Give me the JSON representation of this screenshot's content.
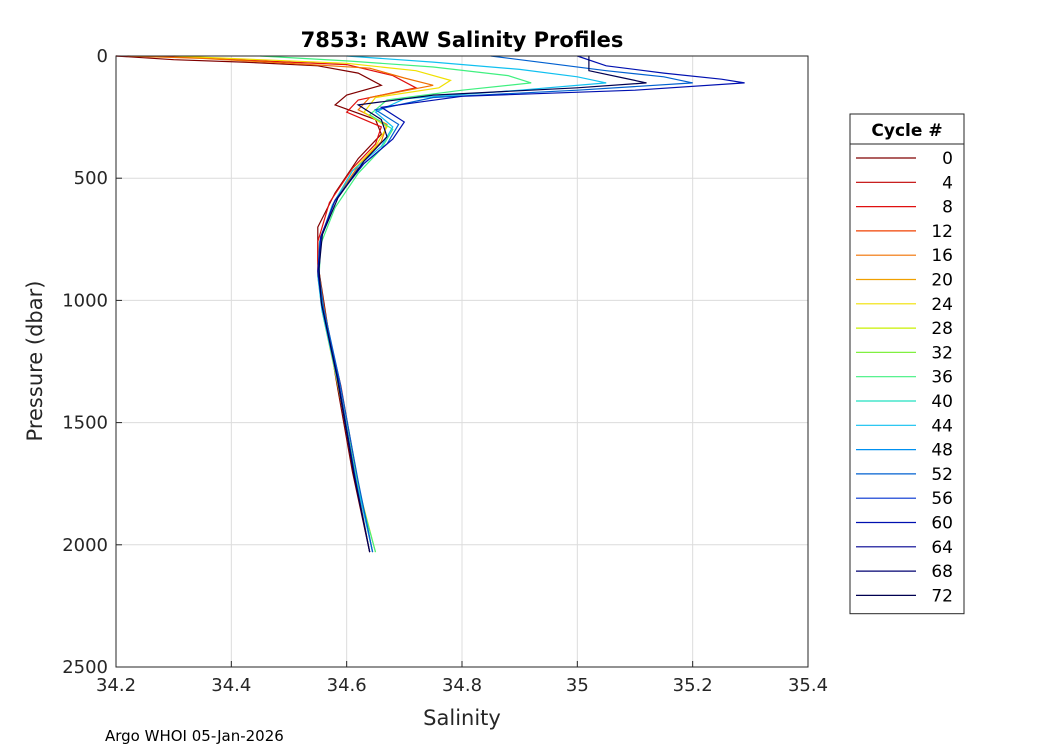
{
  "chart_data": {
    "type": "line",
    "title": "7853: RAW Salinity Profiles",
    "xlabel": "Salinity",
    "ylabel": "Pressure (dbar)",
    "xlim": [
      34.2,
      35.4
    ],
    "ylim": [
      0,
      2500
    ],
    "y_reversed": true,
    "grid": true,
    "x_ticks": [
      "34.2",
      "34.4",
      "34.6",
      "34.8",
      "35",
      "35.2",
      "35.4"
    ],
    "y_ticks": [
      "0",
      "500",
      "1000",
      "1500",
      "2000",
      "2500"
    ],
    "legend": {
      "title": "Cycle #",
      "placement": "right-outside",
      "entries": [
        {
          "label": "0",
          "color": "#800000"
        },
        {
          "label": "4",
          "color": "#c00000"
        },
        {
          "label": "8",
          "color": "#e01010"
        },
        {
          "label": "12",
          "color": "#f04000"
        },
        {
          "label": "16",
          "color": "#f07000"
        },
        {
          "label": "20",
          "color": "#f0a000"
        },
        {
          "label": "24",
          "color": "#f0e000"
        },
        {
          "label": "28",
          "color": "#c8f000"
        },
        {
          "label": "32",
          "color": "#80f040"
        },
        {
          "label": "36",
          "color": "#40f080"
        },
        {
          "label": "40",
          "color": "#20e0c0"
        },
        {
          "label": "44",
          "color": "#10c0f0"
        },
        {
          "label": "48",
          "color": "#0090f0"
        },
        {
          "label": "52",
          "color": "#0060d0"
        },
        {
          "label": "56",
          "color": "#0030d0"
        },
        {
          "label": "60",
          "color": "#0010b0"
        },
        {
          "label": "64",
          "color": "#000090"
        },
        {
          "label": "68",
          "color": "#000070"
        },
        {
          "label": "72",
          "color": "#000050"
        }
      ]
    },
    "series": [
      {
        "color": "#800000",
        "points": [
          [
            34.2,
            0
          ],
          [
            34.3,
            15
          ],
          [
            34.42,
            25
          ],
          [
            34.55,
            40
          ],
          [
            34.62,
            70
          ],
          [
            34.66,
            120
          ],
          [
            34.6,
            160
          ],
          [
            34.58,
            200
          ],
          [
            34.65,
            260
          ],
          [
            34.66,
            320
          ],
          [
            34.62,
            420
          ],
          [
            34.58,
            560
          ],
          [
            34.55,
            700
          ],
          [
            34.55,
            850
          ],
          [
            34.56,
            1000
          ],
          [
            34.58,
            1300
          ],
          [
            34.61,
            1700
          ],
          [
            34.64,
            2030
          ]
        ]
      },
      {
        "color": "#e01010",
        "points": [
          [
            34.2,
            0
          ],
          [
            34.32,
            5
          ],
          [
            34.45,
            20
          ],
          [
            34.6,
            35
          ],
          [
            34.68,
            80
          ],
          [
            34.72,
            130
          ],
          [
            34.62,
            180
          ],
          [
            34.6,
            230
          ],
          [
            34.66,
            290
          ],
          [
            34.65,
            360
          ],
          [
            34.61,
            460
          ],
          [
            34.57,
            600
          ],
          [
            34.55,
            760
          ],
          [
            34.55,
            900
          ],
          [
            34.56,
            1050
          ],
          [
            34.59,
            1350
          ],
          [
            34.62,
            1750
          ],
          [
            34.645,
            2030
          ]
        ]
      },
      {
        "color": "#f07000",
        "points": [
          [
            34.22,
            0
          ],
          [
            34.35,
            10
          ],
          [
            34.5,
            30
          ],
          [
            34.64,
            50
          ],
          [
            34.7,
            90
          ],
          [
            34.75,
            120
          ],
          [
            34.64,
            170
          ],
          [
            34.62,
            220
          ],
          [
            34.67,
            280
          ],
          [
            34.66,
            350
          ],
          [
            34.62,
            450
          ],
          [
            34.58,
            590
          ],
          [
            34.555,
            740
          ],
          [
            34.552,
            880
          ],
          [
            34.56,
            1020
          ],
          [
            34.585,
            1320
          ],
          [
            34.615,
            1720
          ],
          [
            34.64,
            2030
          ]
        ]
      },
      {
        "color": "#f0e000",
        "points": [
          [
            34.3,
            0
          ],
          [
            34.45,
            15
          ],
          [
            34.6,
            30
          ],
          [
            34.72,
            60
          ],
          [
            34.78,
            100
          ],
          [
            34.76,
            130
          ],
          [
            34.65,
            170
          ],
          [
            34.63,
            230
          ],
          [
            34.67,
            290
          ],
          [
            34.65,
            370
          ],
          [
            34.61,
            470
          ],
          [
            34.575,
            610
          ],
          [
            34.553,
            760
          ],
          [
            34.55,
            900
          ],
          [
            34.558,
            1050
          ],
          [
            34.585,
            1350
          ],
          [
            34.62,
            1760
          ],
          [
            34.65,
            2030
          ]
        ]
      },
      {
        "color": "#40f080",
        "points": [
          [
            34.45,
            0
          ],
          [
            34.6,
            20
          ],
          [
            34.75,
            45
          ],
          [
            34.88,
            80
          ],
          [
            34.92,
            110
          ],
          [
            34.8,
            140
          ],
          [
            34.67,
            180
          ],
          [
            34.64,
            240
          ],
          [
            34.68,
            300
          ],
          [
            34.66,
            380
          ],
          [
            34.62,
            480
          ],
          [
            34.58,
            620
          ],
          [
            34.555,
            770
          ],
          [
            34.552,
            910
          ],
          [
            34.56,
            1060
          ],
          [
            34.588,
            1360
          ],
          [
            34.62,
            1770
          ],
          [
            34.65,
            2030
          ]
        ]
      },
      {
        "color": "#10c0f0",
        "points": [
          [
            34.6,
            0
          ],
          [
            34.75,
            25
          ],
          [
            34.9,
            55
          ],
          [
            35.0,
            85
          ],
          [
            35.05,
            110
          ],
          [
            34.9,
            140
          ],
          [
            34.7,
            175
          ],
          [
            34.65,
            230
          ],
          [
            34.68,
            290
          ],
          [
            34.66,
            370
          ],
          [
            34.61,
            470
          ],
          [
            34.575,
            610
          ],
          [
            34.553,
            760
          ],
          [
            34.55,
            900
          ],
          [
            34.557,
            1040
          ],
          [
            34.585,
            1340
          ],
          [
            34.618,
            1750
          ],
          [
            34.645,
            2030
          ]
        ]
      },
      {
        "color": "#0060d0",
        "points": [
          [
            34.85,
            0
          ],
          [
            34.95,
            30
          ],
          [
            35.05,
            60
          ],
          [
            35.15,
            85
          ],
          [
            35.2,
            110
          ],
          [
            35.0,
            140
          ],
          [
            34.75,
            170
          ],
          [
            34.65,
            220
          ],
          [
            34.69,
            280
          ],
          [
            34.67,
            360
          ],
          [
            34.62,
            460
          ],
          [
            34.578,
            600
          ],
          [
            34.555,
            750
          ],
          [
            34.552,
            890
          ],
          [
            34.56,
            1030
          ],
          [
            34.588,
            1330
          ],
          [
            34.62,
            1740
          ],
          [
            34.645,
            2030
          ]
        ]
      },
      {
        "color": "#0010b0",
        "points": [
          [
            35.0,
            0
          ],
          [
            35.05,
            40
          ],
          [
            35.15,
            70
          ],
          [
            35.25,
            95
          ],
          [
            35.29,
            110
          ],
          [
            35.1,
            140
          ],
          [
            34.8,
            165
          ],
          [
            34.66,
            210
          ],
          [
            34.7,
            270
          ],
          [
            34.68,
            340
          ],
          [
            34.63,
            440
          ],
          [
            34.58,
            590
          ],
          [
            34.555,
            740
          ],
          [
            34.55,
            880
          ],
          [
            34.557,
            1020
          ],
          [
            34.585,
            1320
          ],
          [
            34.615,
            1730
          ],
          [
            34.64,
            2030
          ]
        ]
      },
      {
        "color": "#000050",
        "points": [
          [
            35.02,
            0
          ],
          [
            35.02,
            60
          ],
          [
            35.08,
            90
          ],
          [
            35.12,
            110
          ],
          [
            35.0,
            130
          ],
          [
            34.75,
            160
          ],
          [
            34.62,
            200
          ],
          [
            34.66,
            260
          ],
          [
            34.67,
            330
          ],
          [
            34.63,
            430
          ],
          [
            34.585,
            580
          ],
          [
            34.558,
            730
          ],
          [
            34.552,
            870
          ],
          [
            34.556,
            1010
          ],
          [
            34.583,
            1310
          ],
          [
            34.613,
            1720
          ],
          [
            34.64,
            2030
          ]
        ]
      }
    ]
  },
  "footer": {
    "text": "Argo WHOI 05-Jan-2026"
  }
}
